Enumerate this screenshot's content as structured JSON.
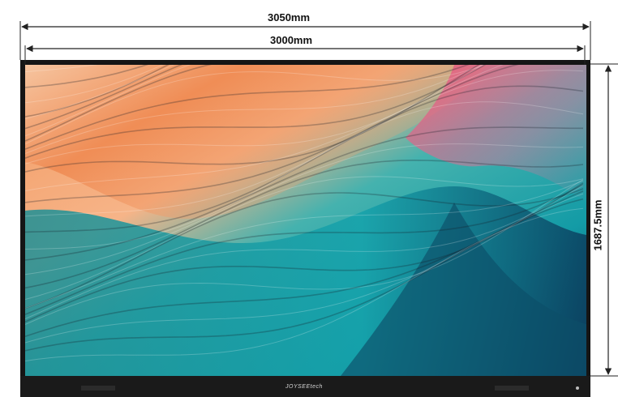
{
  "dimensions": {
    "outer_width_label": "3050mm",
    "inner_width_label": "3000mm",
    "height_label": "1687.5mm"
  },
  "screen": {
    "artwork": "abstract-wavy-layers",
    "brand_logo_text": "JOYSEEtech"
  },
  "colors": {
    "bezel": "#151515",
    "dimension_line": "#222222",
    "orange": "#f0915c",
    "peach": "#f6c8a3",
    "pink": "#e6607e",
    "teal": "#1fa3a8",
    "deep_teal": "#0d5f73",
    "navy": "#0c3a57"
  }
}
